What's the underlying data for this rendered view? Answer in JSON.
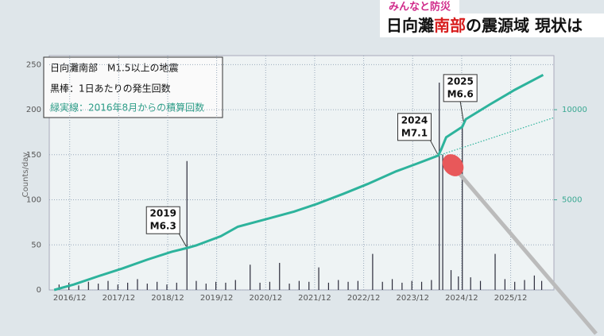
{
  "header": {
    "tag": "みんなと防災",
    "title_parts": [
      "日向灘",
      "南部",
      "の震源域 現状は"
    ]
  },
  "chart_data": {
    "type": "combo",
    "legend_texts": [
      "日向灘南部　M1.5以上の地震",
      "黒棒：1日あたりの発生回数",
      "緑実線：2016年8月からの積算回数"
    ],
    "y_label": "Counts/day",
    "xlim": [
      2016.5,
      2026.8
    ],
    "xticks": [
      {
        "value": 2016.917,
        "label": "2016/12"
      },
      {
        "value": 2017.917,
        "label": "2017/12"
      },
      {
        "value": 2018.917,
        "label": "2018/12"
      },
      {
        "value": 2019.917,
        "label": "2019/12"
      },
      {
        "value": 2020.917,
        "label": "2020/12"
      },
      {
        "value": 2021.917,
        "label": "2021/12"
      },
      {
        "value": 2022.917,
        "label": "2022/12"
      },
      {
        "value": 2023.917,
        "label": "2023/12"
      },
      {
        "value": 2024.917,
        "label": "2024/12"
      },
      {
        "value": 2025.917,
        "label": "2025/12"
      }
    ],
    "ylim": [
      0,
      260
    ],
    "yticks": [
      0,
      50,
      100,
      150,
      200,
      250
    ],
    "y2lim": [
      0,
      13000
    ],
    "y2ticks": [
      5000,
      10000
    ],
    "grid": true,
    "series": [
      {
        "type": "bar",
        "color": "#2b2b3a",
        "x": [
          2016.7,
          2016.9,
          2017.1,
          2017.3,
          2017.5,
          2017.7,
          2017.9,
          2018.1,
          2018.3,
          2018.5,
          2018.7,
          2018.9,
          2019.1,
          2019.31,
          2019.5,
          2019.7,
          2019.9,
          2020.1,
          2020.3,
          2020.6,
          2020.8,
          2021.0,
          2021.2,
          2021.4,
          2021.6,
          2021.8,
          2022.0,
          2022.2,
          2022.4,
          2022.6,
          2022.8,
          2023.1,
          2023.3,
          2023.5,
          2023.7,
          2023.9,
          2024.1,
          2024.3,
          2024.46,
          2024.53,
          2024.7,
          2024.85,
          2024.93,
          2025.1,
          2025.3,
          2025.6,
          2025.8,
          2026.0,
          2026.2,
          2026.4,
          2026.55
        ],
        "values": [
          6,
          8,
          5,
          9,
          7,
          10,
          6,
          8,
          12,
          7,
          9,
          6,
          8,
          143,
          10,
          7,
          9,
          8,
          11,
          28,
          8,
          9,
          30,
          7,
          10,
          9,
          25,
          8,
          11,
          9,
          10,
          40,
          9,
          12,
          8,
          10,
          9,
          11,
          230,
          150,
          22,
          15,
          180,
          14,
          10,
          40,
          12,
          9,
          11,
          16,
          10
        ]
      },
      {
        "type": "line",
        "axis": "y2",
        "color": "#2db39c",
        "x": [
          2016.6,
          2017,
          2017.5,
          2018,
          2018.5,
          2019,
          2019.31,
          2019.5,
          2020,
          2020.35,
          2021,
          2021.5,
          2021.97,
          2022.5,
          2023,
          2023.58,
          2024,
          2024.44,
          2024.5,
          2024.6,
          2024.93,
          2025,
          2025.5,
          2026,
          2026.58
        ],
        "values": [
          0,
          300,
          760,
          1200,
          1680,
          2120,
          2325,
          2470,
          2980,
          3509,
          3980,
          4350,
          4780,
          5330,
          5880,
          6580,
          7000,
          7456,
          7800,
          8465,
          9050,
          9470,
          10300,
          11100,
          11930
        ]
      },
      {
        "type": "line",
        "axis": "y2",
        "color": "#2db39c",
        "style": "dotted",
        "x": [
          2024.44,
          2026.8
        ],
        "values": [
          7456,
          9560
        ]
      }
    ],
    "annotations": [
      {
        "lines": [
          "2019",
          "M6.3"
        ],
        "x": 2019.31,
        "value": 2325
      },
      {
        "lines": [
          "2024",
          "M7.1"
        ],
        "x": 2024.44,
        "value": 7456
      },
      {
        "lines": [
          "2025",
          "M6.6"
        ],
        "x": 2024.97,
        "value": 9260
      }
    ]
  }
}
